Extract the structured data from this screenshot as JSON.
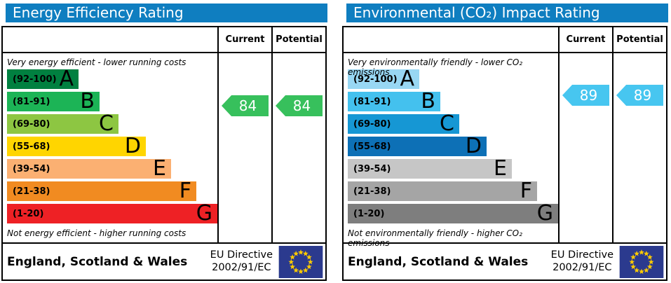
{
  "chart_data": [
    {
      "type": "bar",
      "variant": "epc-rating",
      "title": "Energy Efficiency Rating",
      "columns": {
        "current": "Current",
        "potential": "Potential"
      },
      "top_caption": "Very energy efficient - lower running costs",
      "bottom_caption": "Not energy efficient - higher running costs",
      "bands": [
        {
          "letter": "A",
          "range_label": "(92-100)",
          "min": 92,
          "max": 100,
          "color": "#008040",
          "width": "34%"
        },
        {
          "letter": "B",
          "range_label": "(81-91)",
          "min": 81,
          "max": 91,
          "color": "#1cb456",
          "width": "44%"
        },
        {
          "letter": "C",
          "range_label": "(69-80)",
          "min": 69,
          "max": 80,
          "color": "#8dc642",
          "width": "53%"
        },
        {
          "letter": "D",
          "range_label": "(55-68)",
          "min": 55,
          "max": 68,
          "color": "#ffd500",
          "width": "66%"
        },
        {
          "letter": "E",
          "range_label": "(39-54)",
          "min": 39,
          "max": 54,
          "color": "#fbb072",
          "width": "78%"
        },
        {
          "letter": "F",
          "range_label": "(21-38)",
          "min": 21,
          "max": 38,
          "color": "#f18b21",
          "width": "90%"
        },
        {
          "letter": "G",
          "range_label": "(1-20)",
          "min": 1,
          "max": 20,
          "color": "#ee2125",
          "width": "100%"
        }
      ],
      "current": {
        "value": 84,
        "band": "B"
      },
      "potential": {
        "value": 84,
        "band": "B"
      },
      "arrow_color": "#37c05c",
      "footer": {
        "region": "England, Scotland & Wales",
        "directive_line1": "EU Directive",
        "directive_line2": "2002/91/EC"
      },
      "flag": {
        "background": "#2b3a8e",
        "star_color": "#ffcc00"
      }
    },
    {
      "type": "bar",
      "variant": "epc-rating",
      "title": "Environmental (CO₂) Impact Rating",
      "columns": {
        "current": "Current",
        "potential": "Potential"
      },
      "top_caption": "Very environmentally friendly - lower CO₂ emissions",
      "bottom_caption": "Not environmentally friendly - higher CO₂ emissions",
      "bands": [
        {
          "letter": "A",
          "range_label": "(92-100)",
          "min": 92,
          "max": 100,
          "color": "#98d7f3",
          "width": "34%"
        },
        {
          "letter": "B",
          "range_label": "(81-91)",
          "min": 81,
          "max": 91,
          "color": "#44c1ee",
          "width": "44%"
        },
        {
          "letter": "C",
          "range_label": "(69-80)",
          "min": 69,
          "max": 80,
          "color": "#1697d4",
          "width": "53%"
        },
        {
          "letter": "D",
          "range_label": "(55-68)",
          "min": 55,
          "max": 68,
          "color": "#0d70b6",
          "width": "66%"
        },
        {
          "letter": "E",
          "range_label": "(39-54)",
          "min": 39,
          "max": 54,
          "color": "#c6c6c6",
          "width": "78%"
        },
        {
          "letter": "F",
          "range_label": "(21-38)",
          "min": 21,
          "max": 38,
          "color": "#a5a5a5",
          "width": "90%"
        },
        {
          "letter": "G",
          "range_label": "(1-20)",
          "min": 1,
          "max": 20,
          "color": "#7e7e7e",
          "width": "100%"
        }
      ],
      "current": {
        "value": 89,
        "band": "B"
      },
      "potential": {
        "value": 89,
        "band": "B"
      },
      "arrow_color": "#47c6f0",
      "footer": {
        "region": "England, Scotland & Wales",
        "directive_line1": "EU Directive",
        "directive_line2": "2002/91/EC"
      },
      "flag": {
        "background": "#2b3a8e",
        "star_color": "#ffcc00"
      }
    }
  ]
}
